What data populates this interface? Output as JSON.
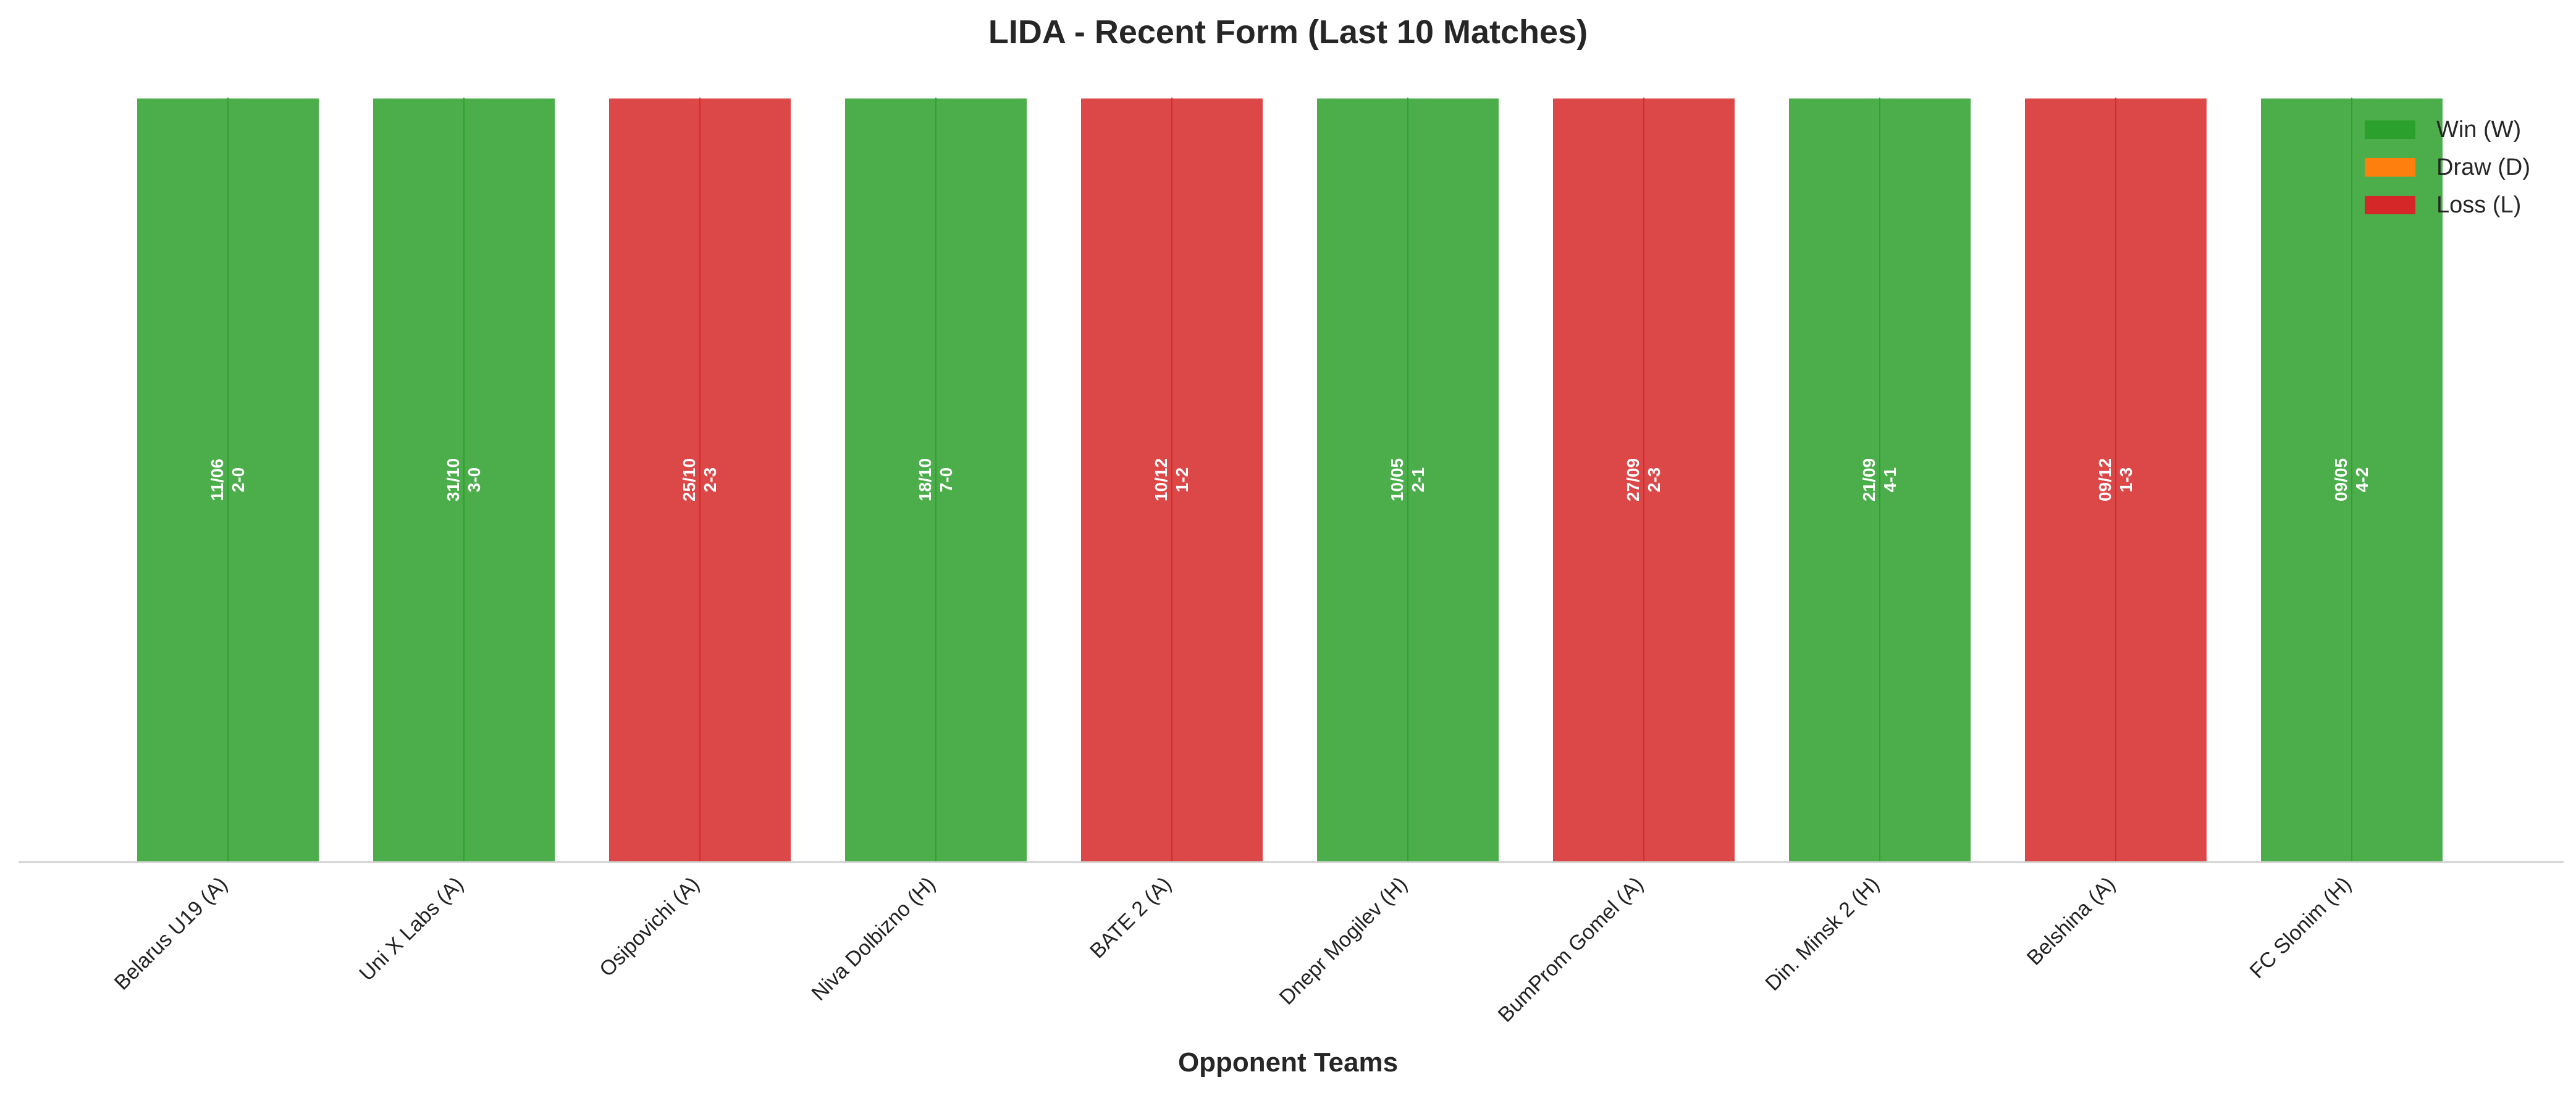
{
  "chart_data": {
    "type": "bar",
    "title": "LIDA - Recent Form (Last 10 Matches)",
    "xlabel": "Opponent Teams",
    "ylabel": "",
    "legend_position": "top-right",
    "legend": [
      {
        "key": "W",
        "label": "Win (W)",
        "color": "#2ca02c"
      },
      {
        "key": "D",
        "label": "Draw (D)",
        "color": "#ff7f0e"
      },
      {
        "key": "L",
        "label": "Loss (L)",
        "color": "#d62728"
      }
    ],
    "categories": [
      "Belarus U19 (A)",
      "Uni X Labs (A)",
      "Osipovichi (A)",
      "Niva Dolbizno (H)",
      "BATE 2 (A)",
      "Dnepr Mogilev (H)",
      "BumProm Gomel (A)",
      "Din. Minsk 2 (H)",
      "Belshina (A)",
      "FC Slonim (H)"
    ],
    "values": [
      1,
      1,
      1,
      1,
      1,
      1,
      1,
      1,
      1,
      1
    ],
    "results": [
      "W",
      "W",
      "L",
      "W",
      "L",
      "W",
      "L",
      "W",
      "L",
      "W"
    ],
    "dates": [
      "11/06",
      "31/10",
      "25/10",
      "18/10",
      "10/12",
      "10/05",
      "27/09",
      "21/09",
      "09/12",
      "09/05"
    ],
    "scores": [
      "2-0",
      "3-0",
      "2-3",
      "7-0",
      "1-2",
      "2-1",
      "2-3",
      "4-1",
      "1-3",
      "4-2"
    ],
    "ylim": [
      0,
      1
    ],
    "grid": false
  }
}
